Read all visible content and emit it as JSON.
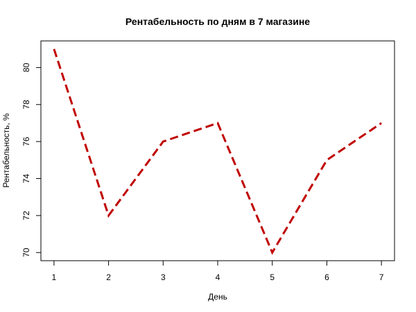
{
  "chart_data": {
    "type": "line",
    "title": "Рентабельность по дням в 7 магазине",
    "xlabel": "День",
    "ylabel": "Рентабельность, %",
    "x": [
      1,
      2,
      3,
      4,
      5,
      6,
      7
    ],
    "x_ticks": [
      "1",
      "2",
      "3",
      "4",
      "5",
      "6",
      "7"
    ],
    "y_ticks": [
      "70",
      "72",
      "74",
      "76",
      "78",
      "80"
    ],
    "xlim": [
      0.76,
      7.24
    ],
    "ylim": [
      69.56,
      81.44
    ],
    "grid": false,
    "legend": "none",
    "series": [
      {
        "values": [
          81,
          72,
          76,
          77,
          70,
          75,
          77
        ],
        "color": "#c00000",
        "line_style": "dashed"
      }
    ]
  }
}
